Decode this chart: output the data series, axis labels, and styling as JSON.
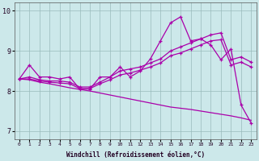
{
  "xlabel": "Windchill (Refroidissement éolien,°C)",
  "xlim_min": -0.5,
  "xlim_max": 23.5,
  "ylim_min": 6.8,
  "ylim_max": 10.2,
  "yticks": [
    7,
    8,
    9,
    10
  ],
  "xticks": [
    0,
    1,
    2,
    3,
    4,
    5,
    6,
    7,
    8,
    9,
    10,
    11,
    12,
    13,
    14,
    15,
    16,
    17,
    18,
    19,
    20,
    21,
    22,
    23
  ],
  "bg_color": "#cce8ea",
  "line_color": "#aa00aa",
  "grid_color": "#99bbbb",
  "line_zigzag": [
    8.3,
    8.65,
    8.35,
    8.35,
    8.3,
    8.35,
    8.05,
    8.05,
    8.35,
    8.35,
    8.6,
    8.35,
    8.5,
    8.8,
    9.25,
    9.7,
    9.85,
    9.25,
    9.3,
    9.15,
    8.78,
    9.05,
    7.65,
    7.2
  ],
  "line_up1": [
    8.3,
    8.35,
    8.28,
    8.25,
    8.25,
    8.22,
    8.1,
    8.1,
    8.22,
    8.35,
    8.5,
    8.55,
    8.6,
    8.7,
    8.8,
    9.0,
    9.1,
    9.2,
    9.3,
    9.4,
    9.45,
    8.78,
    8.85,
    8.72
  ],
  "line_up2": [
    8.3,
    8.3,
    8.25,
    8.22,
    8.2,
    8.18,
    8.06,
    8.06,
    8.18,
    8.28,
    8.4,
    8.45,
    8.52,
    8.6,
    8.7,
    8.88,
    8.95,
    9.05,
    9.15,
    9.25,
    9.28,
    8.65,
    8.72,
    8.6
  ],
  "line_down": [
    8.3,
    8.28,
    8.22,
    8.18,
    8.13,
    8.08,
    8.04,
    8.0,
    7.95,
    7.9,
    7.85,
    7.8,
    7.75,
    7.7,
    7.65,
    7.6,
    7.57,
    7.54,
    7.5,
    7.46,
    7.42,
    7.38,
    7.33,
    7.27
  ]
}
